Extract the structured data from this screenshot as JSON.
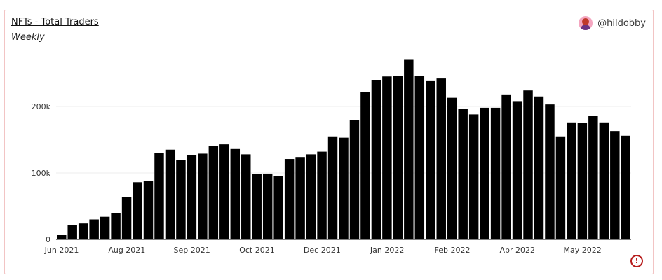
{
  "header": {
    "title": "NFTs - Total Traders",
    "subtitle": "Weekly",
    "author": "@hildobby"
  },
  "colors": {
    "bar": "#000000",
    "grid": "#eeeeee",
    "border": "#f2c4c4",
    "alert": "#b71c1c"
  },
  "icons": {
    "avatar": "user-avatar-icon",
    "alert": "exclamation-circle-icon"
  },
  "chart_data": {
    "type": "bar",
    "title": "NFTs - Total Traders",
    "subtitle": "Weekly",
    "xlabel": "",
    "ylabel": "",
    "ylim": [
      0,
      270000
    ],
    "y_ticks": [
      0,
      100000,
      200000
    ],
    "y_tick_labels": [
      "0",
      "100k",
      "200k"
    ],
    "x_tick_labels": [
      {
        "label": "Jun 2021",
        "index": 0
      },
      {
        "label": "Aug 2021",
        "index": 6
      },
      {
        "label": "Sep 2021",
        "index": 12
      },
      {
        "label": "Oct 2021",
        "index": 18
      },
      {
        "label": "Dec 2021",
        "index": 24
      },
      {
        "label": "Jan 2022",
        "index": 30
      },
      {
        "label": "Feb 2022",
        "index": 36
      },
      {
        "label": "Apr 2022",
        "index": 42
      },
      {
        "label": "May 2022",
        "index": 48
      }
    ],
    "grid": true,
    "legend": "none",
    "values": [
      7000,
      22000,
      24000,
      30000,
      34000,
      40000,
      64000,
      86000,
      88000,
      130000,
      135000,
      119000,
      127000,
      129000,
      141000,
      143000,
      136000,
      128000,
      98000,
      99000,
      95000,
      121000,
      124000,
      128000,
      132000,
      155000,
      153000,
      180000,
      222000,
      240000,
      245000,
      246000,
      270000,
      246000,
      238000,
      242000,
      213000,
      196000,
      188000,
      198000,
      198000,
      217000,
      208000,
      224000,
      215000,
      203000,
      155000,
      176000,
      175000,
      186000,
      176000,
      163000,
      156000
    ]
  }
}
